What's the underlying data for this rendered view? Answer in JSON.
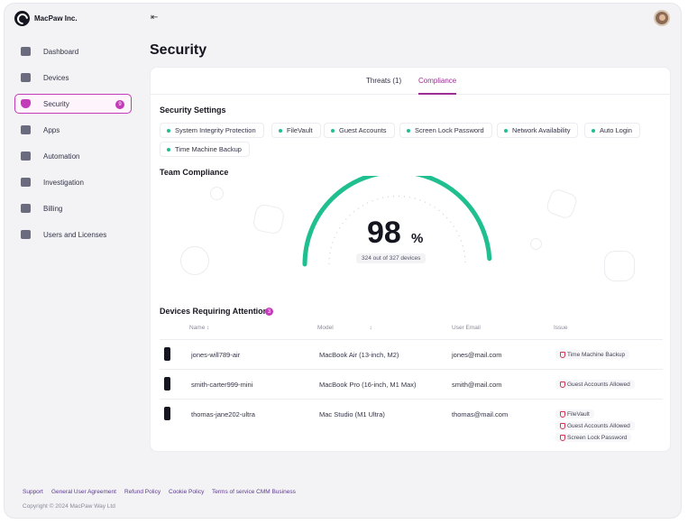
{
  "brand": {
    "name": "MacPaw Inc."
  },
  "header": {
    "collapse_icon": "collapse-left-icon"
  },
  "sidebar": {
    "items": [
      {
        "label": "Dashboard",
        "icon": "dashboard-icon"
      },
      {
        "label": "Devices",
        "icon": "devices-icon"
      },
      {
        "label": "Security",
        "icon": "shield-icon",
        "badge": "9",
        "active": true
      },
      {
        "label": "Apps",
        "icon": "apps-icon"
      },
      {
        "label": "Automation",
        "icon": "automation-icon"
      },
      {
        "label": "Investigation",
        "icon": "investigation-icon"
      },
      {
        "label": "Billing",
        "icon": "billing-icon"
      },
      {
        "label": "Users and Licenses",
        "icon": "users-icon"
      }
    ]
  },
  "page": {
    "title": "Security"
  },
  "tabs": [
    {
      "label": "Threats (1)",
      "active": false
    },
    {
      "label": "Compliance",
      "active": true
    }
  ],
  "security_settings": {
    "title": "Security Settings",
    "items": [
      "System Integrity Protection",
      "FileVault",
      "Guest Accounts",
      "Screen Lock Password",
      "Network Availability",
      "Auto Login",
      "Time Machine Backup"
    ]
  },
  "team_compliance": {
    "title": "Team Compliance",
    "percent": "98",
    "percent_sign": "%",
    "percent_value": 98,
    "devices_text": "324 out of 327 devices",
    "accent": "#1fbf8f"
  },
  "attention": {
    "title": "Devices Requiring Attention",
    "count": "3",
    "columns": [
      "Name",
      "Model",
      "User Email",
      "Issue"
    ],
    "rows": [
      {
        "name": "jones-will789-air",
        "model": "MacBook Air (13-inch, M2)",
        "email": "jones@mail.com",
        "issues": [
          "Time Machine Backup"
        ]
      },
      {
        "name": "smith-carter999-mini",
        "model": "MacBook Pro (16-inch, M1 Max)",
        "email": "smith@mail.com",
        "issues": [
          "Guest Accounts Allowed"
        ]
      },
      {
        "name": "thomas-jane202-ultra",
        "model": "Mac Studio (M1 Ultra)",
        "email": "thomas@mail.com",
        "issues": [
          "FileVault",
          "Guest Accounts Allowed",
          "Screen Lock Password"
        ]
      }
    ]
  },
  "footer": {
    "links": [
      "Support",
      "General User Agreement",
      "Refund Policy",
      "Cookie Policy",
      "Terms of service CMM Business"
    ],
    "copyright": "Copyright © 2024 MacPaw Way Ltd"
  },
  "colors": {
    "brand_accent": "#c33bb8",
    "compliance_green": "#1fbf8f",
    "issue_red": "#d6324f"
  }
}
